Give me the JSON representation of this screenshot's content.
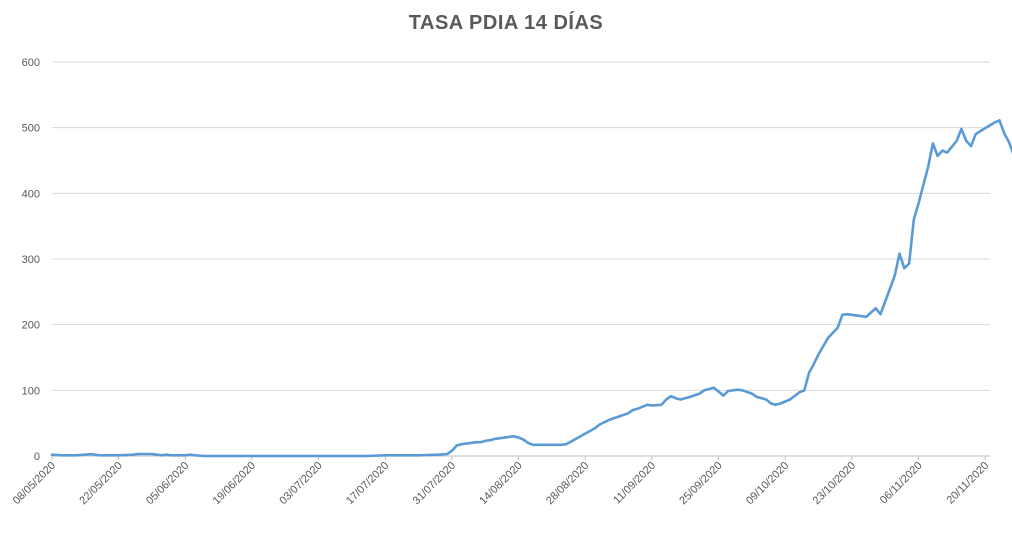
{
  "chart_data": {
    "type": "line",
    "title": "TASA PDIA 14 DÍAS",
    "xlabel": "",
    "ylabel": "",
    "ylim": [
      0,
      600
    ],
    "yticks": [
      0,
      100,
      200,
      300,
      400,
      500,
      600
    ],
    "grid": true,
    "legend": "none",
    "x_start": "08/05/2020",
    "x_end": "21/11/2020",
    "xtick_labels": [
      "08/05/2020",
      "22/05/2020",
      "05/06/2020",
      "19/06/2020",
      "03/07/2020",
      "17/07/2020",
      "31/07/2020",
      "14/08/2020",
      "28/08/2020",
      "11/09/2020",
      "25/09/2020",
      "09/10/2020",
      "23/10/2020",
      "06/11/2020",
      "20/11/2020"
    ],
    "series": [
      {
        "name": "",
        "color": "#5b9bd5",
        "points": [
          [
            "08/05/2020",
            2
          ],
          [
            "10/05/2020",
            1
          ],
          [
            "13/05/2020",
            1
          ],
          [
            "15/05/2020",
            2
          ],
          [
            "16/05/2020",
            3
          ],
          [
            "18/05/2020",
            1
          ],
          [
            "22/05/2020",
            1
          ],
          [
            "25/05/2020",
            2
          ],
          [
            "26/05/2020",
            3
          ],
          [
            "29/05/2020",
            3
          ],
          [
            "31/05/2020",
            1
          ],
          [
            "01/06/2020",
            2
          ],
          [
            "02/06/2020",
            1
          ],
          [
            "05/06/2020",
            1
          ],
          [
            "06/06/2020",
            2
          ],
          [
            "07/06/2020",
            1
          ],
          [
            "09/06/2020",
            0
          ],
          [
            "15/06/2020",
            0
          ],
          [
            "19/06/2020",
            0
          ],
          [
            "03/07/2020",
            0
          ],
          [
            "13/07/2020",
            0
          ],
          [
            "17/07/2020",
            1
          ],
          [
            "20/07/2020",
            1
          ],
          [
            "24/07/2020",
            1
          ],
          [
            "28/07/2020",
            2
          ],
          [
            "30/07/2020",
            3
          ],
          [
            "31/07/2020",
            8
          ],
          [
            "01/08/2020",
            16
          ],
          [
            "02/08/2020",
            18
          ],
          [
            "04/08/2020",
            20
          ],
          [
            "05/08/2020",
            21
          ],
          [
            "06/08/2020",
            21
          ],
          [
            "07/08/2020",
            23
          ],
          [
            "08/08/2020",
            24
          ],
          [
            "09/08/2020",
            26
          ],
          [
            "11/08/2020",
            28
          ],
          [
            "13/08/2020",
            30
          ],
          [
            "14/08/2020",
            28
          ],
          [
            "15/08/2020",
            25
          ],
          [
            "16/08/2020",
            20
          ],
          [
            "17/08/2020",
            17
          ],
          [
            "19/08/2020",
            17
          ],
          [
            "23/08/2020",
            17
          ],
          [
            "24/08/2020",
            18
          ],
          [
            "25/08/2020",
            22
          ],
          [
            "27/08/2020",
            30
          ],
          [
            "29/08/2020",
            38
          ],
          [
            "30/08/2020",
            42
          ],
          [
            "31/08/2020",
            48
          ],
          [
            "02/09/2020",
            55
          ],
          [
            "04/09/2020",
            60
          ],
          [
            "06/09/2020",
            65
          ],
          [
            "07/09/2020",
            70
          ],
          [
            "08/09/2020",
            72
          ],
          [
            "09/09/2020",
            75
          ],
          [
            "10/09/2020",
            78
          ],
          [
            "11/09/2020",
            77
          ],
          [
            "13/09/2020",
            78
          ],
          [
            "14/09/2020",
            86
          ],
          [
            "15/09/2020",
            91
          ],
          [
            "16/09/2020",
            88
          ],
          [
            "17/09/2020",
            86
          ],
          [
            "19/09/2020",
            90
          ],
          [
            "21/09/2020",
            95
          ],
          [
            "22/09/2020",
            100
          ],
          [
            "24/09/2020",
            104
          ],
          [
            "25/09/2020",
            98
          ],
          [
            "26/09/2020",
            92
          ],
          [
            "27/09/2020",
            99
          ],
          [
            "29/09/2020",
            101
          ],
          [
            "30/09/2020",
            100
          ],
          [
            "02/10/2020",
            95
          ],
          [
            "03/10/2020",
            90
          ],
          [
            "05/10/2020",
            86
          ],
          [
            "06/10/2020",
            80
          ],
          [
            "07/10/2020",
            78
          ],
          [
            "08/10/2020",
            80
          ],
          [
            "10/10/2020",
            86
          ],
          [
            "12/10/2020",
            97
          ],
          [
            "13/10/2020",
            100
          ],
          [
            "14/10/2020",
            127
          ],
          [
            "15/10/2020",
            140
          ],
          [
            "16/10/2020",
            155
          ],
          [
            "18/10/2020",
            180
          ],
          [
            "20/10/2020",
            195
          ],
          [
            "21/10/2020",
            215
          ],
          [
            "22/10/2020",
            216
          ],
          [
            "26/10/2020",
            212
          ],
          [
            "28/10/2020",
            225
          ],
          [
            "29/10/2020",
            216
          ],
          [
            "31/10/2020",
            255
          ],
          [
            "01/11/2020",
            275
          ],
          [
            "02/11/2020",
            308
          ],
          [
            "03/11/2020",
            286
          ],
          [
            "04/11/2020",
            293
          ],
          [
            "05/11/2020",
            360
          ],
          [
            "06/11/2020",
            385
          ],
          [
            "08/11/2020",
            440
          ],
          [
            "09/11/2020",
            476
          ],
          [
            "10/11/2020",
            457
          ],
          [
            "11/11/2020",
            465
          ],
          [
            "12/11/2020",
            462
          ],
          [
            "14/11/2020",
            480
          ],
          [
            "15/11/2020",
            498
          ],
          [
            "16/11/2020",
            480
          ],
          [
            "17/11/2020",
            472
          ],
          [
            "18/11/2020",
            490
          ],
          [
            "19/11/2020",
            495
          ],
          [
            "22/11/2020",
            508
          ],
          [
            "23/11/2020",
            511
          ],
          [
            "24/11/2020",
            491
          ],
          [
            "25/11/2020",
            478
          ],
          [
            "26/11/2020",
            458
          ]
        ]
      }
    ]
  }
}
